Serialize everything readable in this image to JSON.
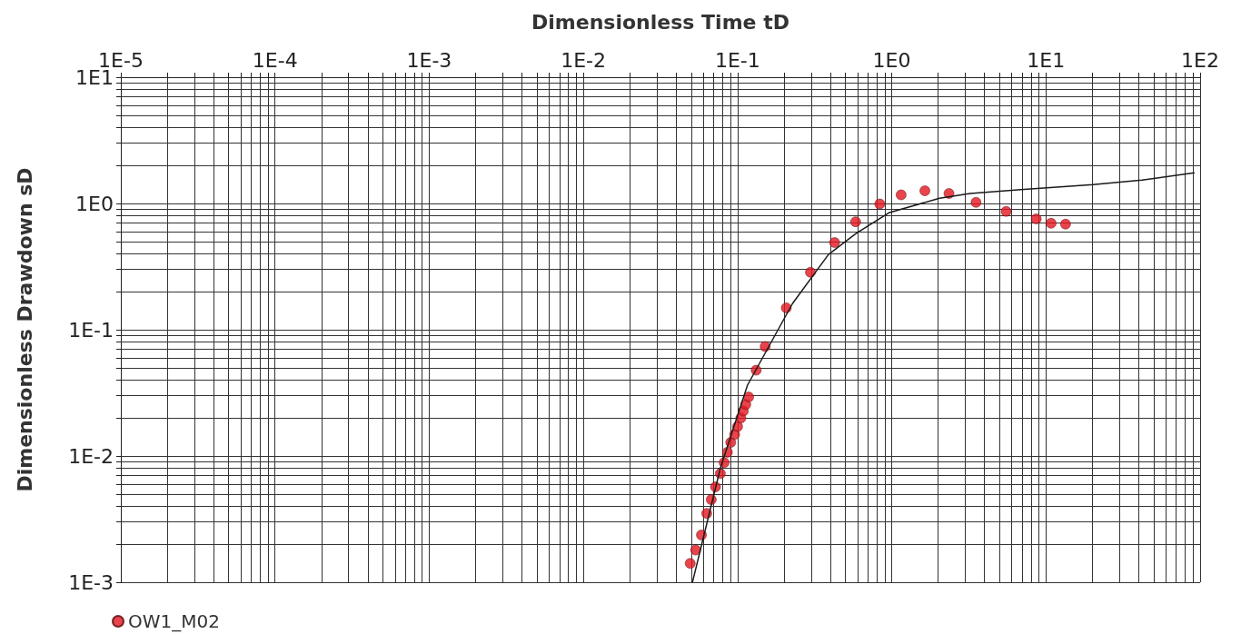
{
  "chart_data": {
    "type": "scatter",
    "xlabel": "Dimensionless Time tD",
    "ylabel": "Dimensionless Drawdown sD",
    "log": "xy",
    "grid": true,
    "legend": "bottom left",
    "marker": "circle",
    "xlim": [
      1e-05,
      100
    ],
    "ylim": [
      0.001,
      10
    ],
    "xticks": [
      {
        "value": 1e-05,
        "label": "1E-5"
      },
      {
        "value": 2e-05,
        "label": null
      },
      {
        "value": 3e-05,
        "label": null
      },
      {
        "value": 4e-05,
        "label": null
      },
      {
        "value": 5e-05,
        "label": null
      },
      {
        "value": 6e-05,
        "label": null
      },
      {
        "value": 7e-05,
        "label": null
      },
      {
        "value": 8e-05,
        "label": null
      },
      {
        "value": 9e-05,
        "label": null
      },
      {
        "value": 0.0001,
        "label": "1E-4"
      },
      {
        "value": 0.0002,
        "label": null
      },
      {
        "value": 0.0003,
        "label": null
      },
      {
        "value": 0.0004,
        "label": null
      },
      {
        "value": 0.0005,
        "label": null
      },
      {
        "value": 0.0006,
        "label": null
      },
      {
        "value": 0.0007,
        "label": null
      },
      {
        "value": 0.0008,
        "label": null
      },
      {
        "value": 0.0009,
        "label": null
      },
      {
        "value": 0.001,
        "label": "1E-3"
      },
      {
        "value": 0.002,
        "label": null
      },
      {
        "value": 0.003,
        "label": null
      },
      {
        "value": 0.004,
        "label": null
      },
      {
        "value": 0.005,
        "label": null
      },
      {
        "value": 0.006,
        "label": null
      },
      {
        "value": 0.007,
        "label": null
      },
      {
        "value": 0.008,
        "label": null
      },
      {
        "value": 0.009,
        "label": null
      },
      {
        "value": 0.01,
        "label": "1E-2"
      },
      {
        "value": 0.02,
        "label": null
      },
      {
        "value": 0.03,
        "label": null
      },
      {
        "value": 0.04,
        "label": null
      },
      {
        "value": 0.05,
        "label": null
      },
      {
        "value": 0.06,
        "label": null
      },
      {
        "value": 0.07,
        "label": null
      },
      {
        "value": 0.08,
        "label": null
      },
      {
        "value": 0.09,
        "label": null
      },
      {
        "value": 0.1,
        "label": "1E-1"
      },
      {
        "value": 0.2,
        "label": null
      },
      {
        "value": 0.3,
        "label": null
      },
      {
        "value": 0.4,
        "label": null
      },
      {
        "value": 0.5,
        "label": null
      },
      {
        "value": 0.6,
        "label": null
      },
      {
        "value": 0.7,
        "label": null
      },
      {
        "value": 0.8,
        "label": null
      },
      {
        "value": 0.9,
        "label": null
      },
      {
        "value": 1,
        "label": "1E0"
      },
      {
        "value": 2,
        "label": null
      },
      {
        "value": 3,
        "label": null
      },
      {
        "value": 4,
        "label": null
      },
      {
        "value": 5,
        "label": null
      },
      {
        "value": 6,
        "label": null
      },
      {
        "value": 7,
        "label": null
      },
      {
        "value": 8,
        "label": null
      },
      {
        "value": 9,
        "label": null
      },
      {
        "value": 10,
        "label": "1E1"
      },
      {
        "value": 20,
        "label": null
      },
      {
        "value": 30,
        "label": null
      },
      {
        "value": 40,
        "label": null
      },
      {
        "value": 50,
        "label": null
      },
      {
        "value": 60,
        "label": null
      },
      {
        "value": 70,
        "label": null
      },
      {
        "value": 80,
        "label": null
      },
      {
        "value": 90,
        "label": null
      },
      {
        "value": 100,
        "label": "1E2"
      }
    ],
    "yticks": [
      {
        "value": 0.001,
        "label": "1E-3"
      },
      {
        "value": 0.002,
        "label": null
      },
      {
        "value": 0.003,
        "label": null
      },
      {
        "value": 0.004,
        "label": null
      },
      {
        "value": 0.005,
        "label": null
      },
      {
        "value": 0.006,
        "label": null
      },
      {
        "value": 0.007,
        "label": null
      },
      {
        "value": 0.008,
        "label": null
      },
      {
        "value": 0.009,
        "label": null
      },
      {
        "value": 0.01,
        "label": "1E-2"
      },
      {
        "value": 0.02,
        "label": null
      },
      {
        "value": 0.03,
        "label": null
      },
      {
        "value": 0.04,
        "label": null
      },
      {
        "value": 0.05,
        "label": null
      },
      {
        "value": 0.06,
        "label": null
      },
      {
        "value": 0.07,
        "label": null
      },
      {
        "value": 0.08,
        "label": null
      },
      {
        "value": 0.09,
        "label": null
      },
      {
        "value": 0.1,
        "label": "1E-1"
      },
      {
        "value": 0.2,
        "label": null
      },
      {
        "value": 0.3,
        "label": null
      },
      {
        "value": 0.4,
        "label": null
      },
      {
        "value": 0.5,
        "label": null
      },
      {
        "value": 0.6,
        "label": null
      },
      {
        "value": 0.7,
        "label": null
      },
      {
        "value": 0.8,
        "label": null
      },
      {
        "value": 0.9,
        "label": null
      },
      {
        "value": 1,
        "label": "1E0"
      },
      {
        "value": 2,
        "label": null
      },
      {
        "value": 3,
        "label": null
      },
      {
        "value": 4,
        "label": null
      },
      {
        "value": 5,
        "label": null
      },
      {
        "value": 6,
        "label": null
      },
      {
        "value": 7,
        "label": null
      },
      {
        "value": 8,
        "label": null
      },
      {
        "value": 9,
        "label": null
      },
      {
        "value": 10,
        "label": "1E1"
      }
    ],
    "series": [
      {
        "name": "OW1_M02",
        "color": "#e3151f",
        "x": [
          0.0493,
          0.0535,
          0.0583,
          0.0631,
          0.0675,
          0.0719,
          0.0773,
          0.0818,
          0.0859,
          0.0903,
          0.0957,
          0.1,
          0.105,
          0.109,
          0.113,
          0.118,
          0.132,
          0.151,
          0.207,
          0.297,
          0.426,
          0.583,
          0.836,
          1.15,
          1.64,
          2.35,
          3.52,
          5.52,
          8.65,
          10.8,
          13.4
        ],
        "values": [
          0.00141,
          0.0018,
          0.00237,
          0.00351,
          0.00451,
          0.00569,
          0.00726,
          0.00886,
          0.0107,
          0.0128,
          0.0148,
          0.0171,
          0.02,
          0.0227,
          0.0256,
          0.0293,
          0.0478,
          0.0737,
          0.149,
          0.285,
          0.49,
          0.716,
          0.991,
          1.17,
          1.26,
          1.2,
          1.02,
          0.865,
          0.755,
          0.697,
          0.686
        ]
      },
      {
        "type": "line",
        "color": "#1a1a1a",
        "marker": "none",
        "line_style": "solid",
        "x": [
          0.0511,
          0.0773,
          0.116,
          0.227,
          0.389,
          0.583,
          0.957,
          2.04,
          3.23,
          6.87,
          20.2,
          41.9,
          91.4
        ],
        "values": [
          0.00101,
          0.008,
          0.0364,
          0.161,
          0.395,
          0.576,
          0.843,
          1.1,
          1.2,
          1.29,
          1.41,
          1.53,
          1.75
        ]
      }
    ]
  }
}
